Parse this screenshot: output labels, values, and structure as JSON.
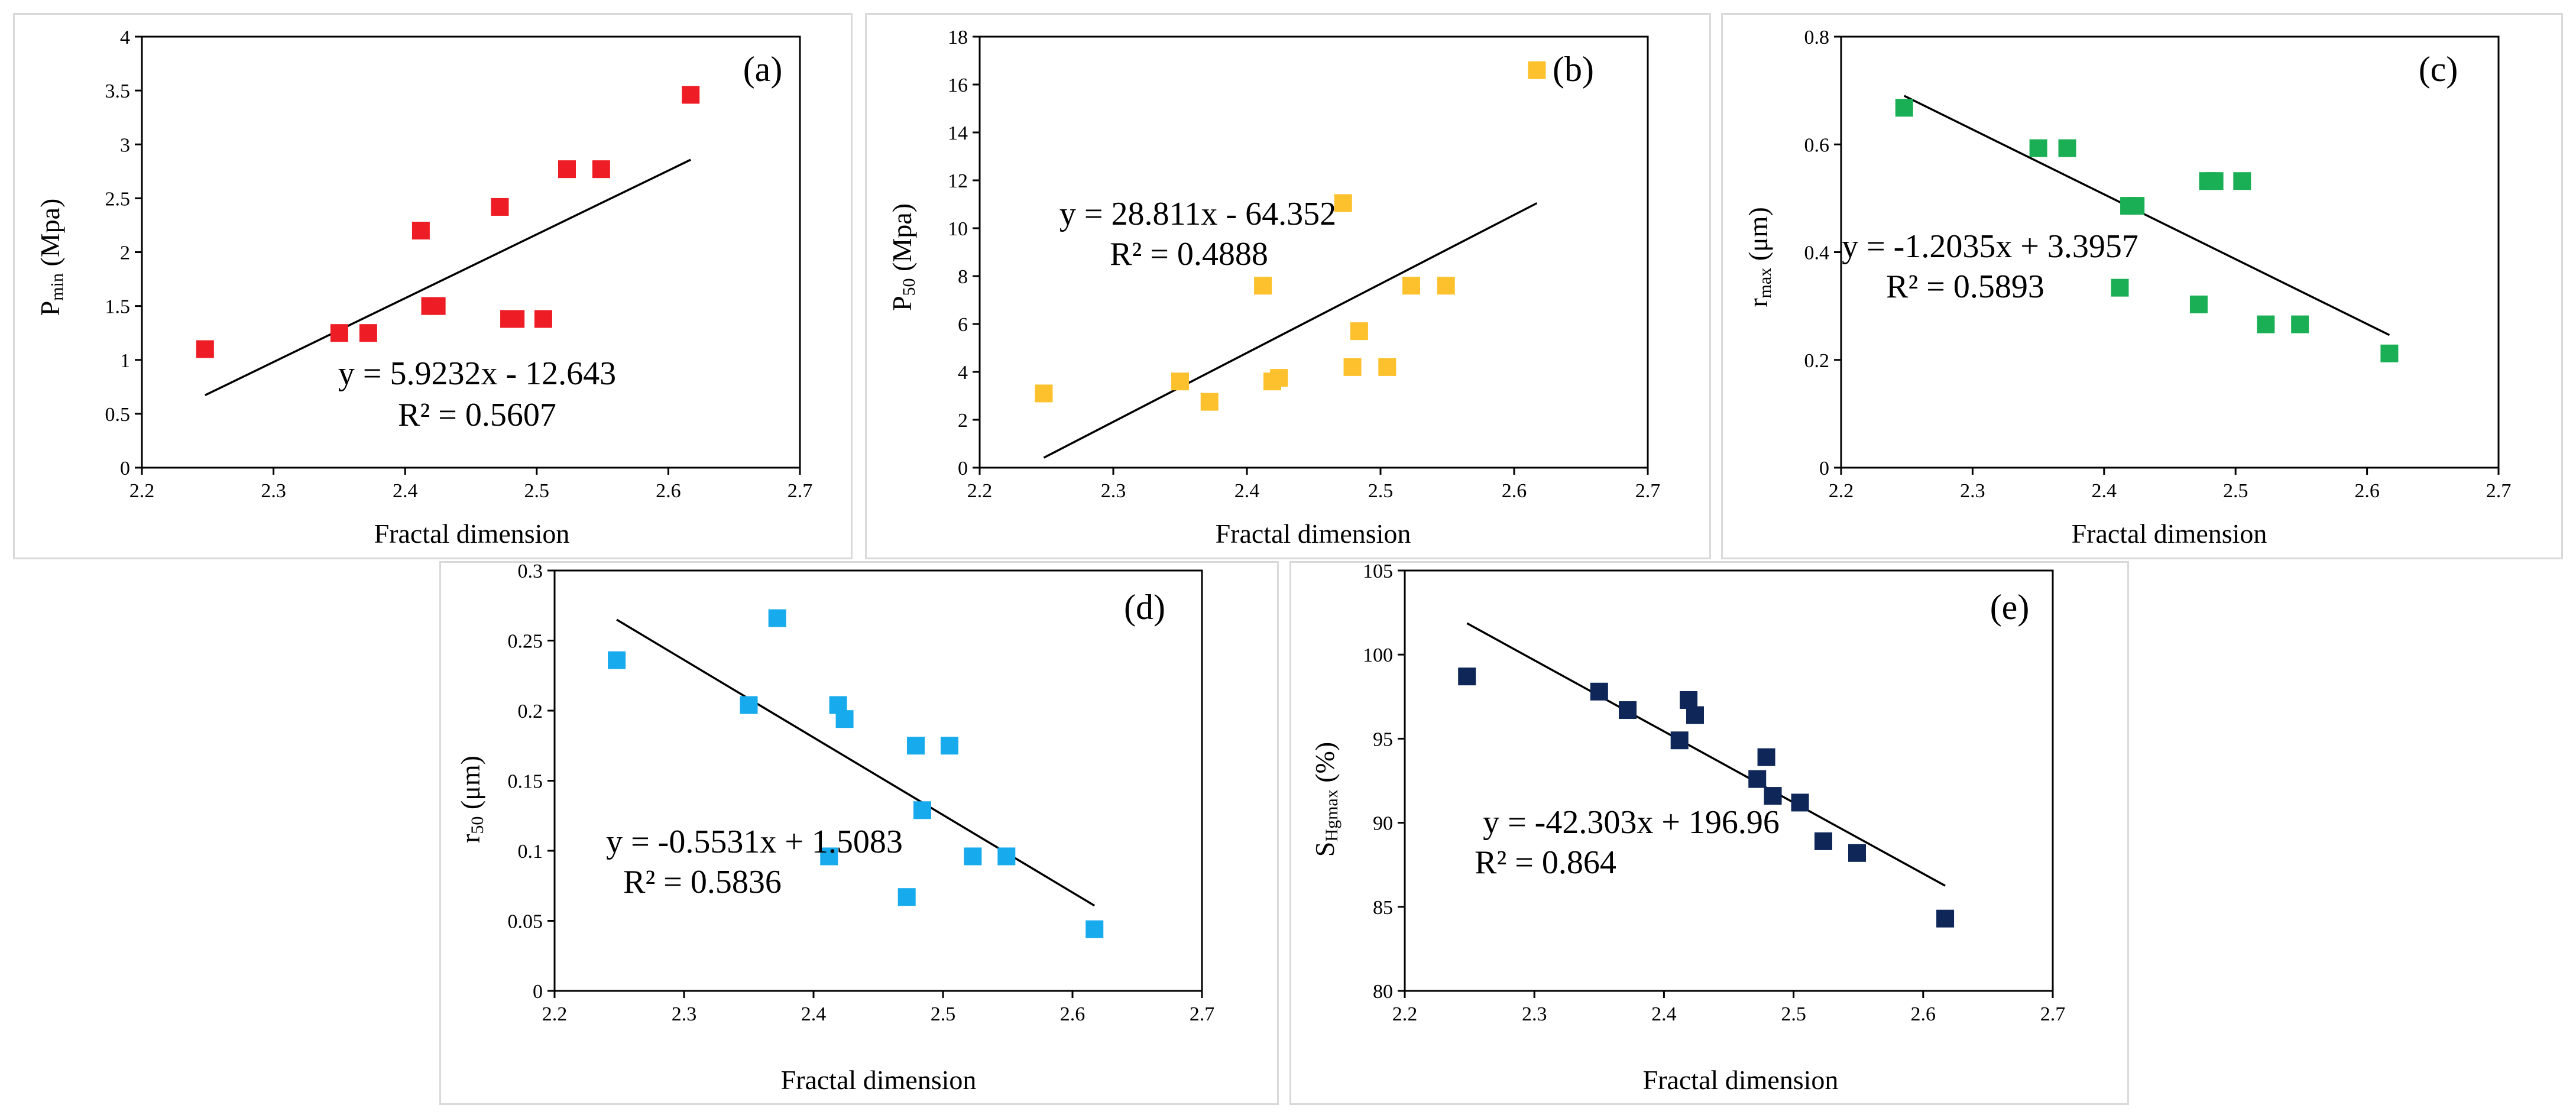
{
  "figure": {
    "panels": [
      {
        "id": "a",
        "label": "(a)",
        "xlabel": "Fractal dimension",
        "ylabel_main": "P",
        "ylabel_sub": "min",
        "ylabel_tail": " (Mpa)",
        "equation": "y = 5.9232x - 12.643",
        "r2": "R² = 0.5607",
        "marker_color": "#ee1c25"
      },
      {
        "id": "b",
        "label": "(b)",
        "xlabel": "Fractal dimension",
        "ylabel_main": "P",
        "ylabel_sub": "50",
        "ylabel_tail": " (Mpa)",
        "equation": "y = 28.811x - 64.352",
        "r2": "R² = 0.4888",
        "marker_color": "#fcc12c"
      },
      {
        "id": "c",
        "label": "(c)",
        "xlabel": "Fractal dimension",
        "ylabel_main": "r",
        "ylabel_sub": "max",
        "ylabel_tail": " (μm)",
        "equation": "y = -1.2035x + 3.3957",
        "r2": "R² = 0.5893",
        "marker_color": "#1aaf54"
      },
      {
        "id": "d",
        "label": "(d)",
        "xlabel": "Fractal dimension",
        "ylabel_main": "r",
        "ylabel_sub": "50",
        "ylabel_tail": " (μm)",
        "equation": "y = -0.5531x + 1.5083",
        "r2": "R² = 0.5836",
        "marker_color": "#17aaec"
      },
      {
        "id": "e",
        "label": "(e)",
        "xlabel": "Fractal dimension",
        "ylabel_main": "S",
        "ylabel_sub": "Hgmax",
        "ylabel_tail": " (%)",
        "equation": "y = -42.303x + 196.96",
        "r2": "R² = 0.864",
        "marker_color": "#0e2658"
      }
    ]
  },
  "chart_data": [
    {
      "type": "scatter",
      "panel": "a",
      "xlim": [
        2.2,
        2.7
      ],
      "ylim": [
        0,
        4
      ],
      "xticks": [
        "2.2",
        "2.3",
        "2.4",
        "2.5",
        "2.6",
        "2.7"
      ],
      "yticks": [
        "0",
        "0.5",
        "1",
        "1.5",
        "2",
        "2.5",
        "3",
        "3.5",
        "4"
      ],
      "x": [
        2.248,
        2.35,
        2.372,
        2.412,
        2.419,
        2.424,
        2.472,
        2.479,
        2.484,
        2.505,
        2.523,
        2.549,
        2.617
      ],
      "y": [
        1.1,
        1.25,
        1.25,
        2.2,
        1.5,
        1.5,
        2.42,
        1.38,
        1.38,
        1.38,
        2.77,
        2.77,
        3.46
      ],
      "trendline": {
        "slope": 5.9232,
        "intercept": -12.643,
        "x_range": [
          2.248,
          2.617
        ]
      }
    },
    {
      "type": "scatter",
      "panel": "b",
      "xlim": [
        2.2,
        2.7
      ],
      "ylim": [
        0,
        18
      ],
      "xticks": [
        "2.2",
        "2.3",
        "2.4",
        "2.5",
        "2.6",
        "2.7"
      ],
      "yticks": [
        "0",
        "2",
        "4",
        "6",
        "8",
        "10",
        "12",
        "14",
        "16",
        "18"
      ],
      "x": [
        2.248,
        2.35,
        2.372,
        2.412,
        2.419,
        2.424,
        2.472,
        2.479,
        2.484,
        2.505,
        2.523,
        2.549,
        2.617
      ],
      "y": [
        3.1,
        3.6,
        2.75,
        7.6,
        3.6,
        3.75,
        11.05,
        4.2,
        5.7,
        4.2,
        7.6,
        7.6,
        16.6
      ],
      "trendline": {
        "slope": 28.811,
        "intercept": -64.352,
        "x_range": [
          2.248,
          2.617
        ]
      }
    },
    {
      "type": "scatter",
      "panel": "c",
      "xlim": [
        2.2,
        2.7
      ],
      "ylim": [
        0,
        0.8
      ],
      "xticks": [
        "2.2",
        "2.3",
        "2.4",
        "2.5",
        "2.6",
        "2.7"
      ],
      "yticks": [
        "0",
        "0.2",
        "0.4",
        "0.6",
        "0.8"
      ],
      "x": [
        2.248,
        2.35,
        2.372,
        2.412,
        2.419,
        2.424,
        2.472,
        2.479,
        2.484,
        2.505,
        2.523,
        2.549,
        2.617
      ],
      "y": [
        0.668,
        0.593,
        0.593,
        0.334,
        0.486,
        0.486,
        0.303,
        0.532,
        0.532,
        0.532,
        0.266,
        0.266,
        0.212
      ],
      "trendline": {
        "slope": -1.2035,
        "intercept": 3.3957,
        "x_range": [
          2.248,
          2.617
        ]
      }
    },
    {
      "type": "scatter",
      "panel": "d",
      "xlim": [
        2.2,
        2.7
      ],
      "ylim": [
        0,
        0.3
      ],
      "xticks": [
        "2.2",
        "2.3",
        "2.4",
        "2.5",
        "2.6",
        "2.7"
      ],
      "yticks": [
        "0",
        "0.05",
        "0.1",
        "0.15",
        "0.2",
        "0.25",
        "0.3"
      ],
      "x": [
        2.248,
        2.35,
        2.372,
        2.412,
        2.419,
        2.424,
        2.472,
        2.479,
        2.484,
        2.505,
        2.523,
        2.549,
        2.617
      ],
      "y": [
        0.236,
        0.204,
        0.266,
        0.096,
        0.204,
        0.194,
        0.067,
        0.175,
        0.129,
        0.175,
        0.096,
        0.096,
        0.044
      ],
      "trendline": {
        "slope": -0.5531,
        "intercept": 1.5083,
        "x_range": [
          2.248,
          2.617
        ]
      }
    },
    {
      "type": "scatter",
      "panel": "e",
      "xlim": [
        2.2,
        2.7
      ],
      "ylim": [
        80,
        105
      ],
      "xticks": [
        "2.2",
        "2.3",
        "2.4",
        "2.5",
        "2.6",
        "2.7"
      ],
      "yticks": [
        "80",
        "85",
        "90",
        "95",
        "100",
        "105"
      ],
      "x": [
        2.248,
        2.35,
        2.372,
        2.412,
        2.419,
        2.424,
        2.472,
        2.479,
        2.484,
        2.505,
        2.523,
        2.549,
        2.617
      ],
      "y": [
        98.7,
        97.8,
        96.7,
        94.9,
        97.3,
        96.4,
        92.6,
        93.9,
        91.6,
        91.2,
        88.9,
        88.2,
        84.3
      ],
      "trendline": {
        "slope": -42.303,
        "intercept": 196.96,
        "x_range": [
          2.248,
          2.617
        ]
      }
    }
  ]
}
